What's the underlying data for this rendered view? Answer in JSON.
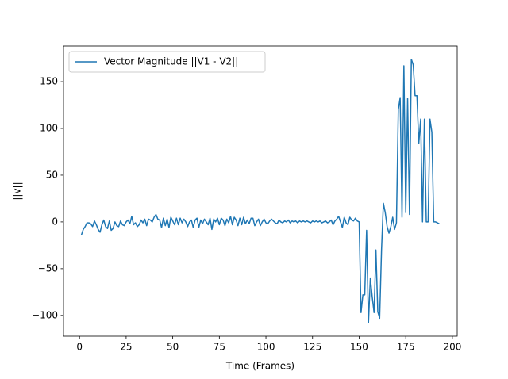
{
  "chart_data": {
    "type": "line",
    "xlabel": "Time (Frames)",
    "ylabel": "||v||",
    "x": [
      1,
      2,
      3,
      4,
      5,
      6,
      7,
      8,
      9,
      10,
      11,
      12,
      13,
      14,
      15,
      16,
      17,
      18,
      19,
      20,
      21,
      22,
      23,
      24,
      25,
      26,
      27,
      28,
      29,
      30,
      31,
      32,
      33,
      34,
      35,
      36,
      37,
      38,
      39,
      40,
      41,
      42,
      43,
      44,
      45,
      46,
      47,
      48,
      49,
      50,
      51,
      52,
      53,
      54,
      55,
      56,
      57,
      58,
      59,
      60,
      61,
      62,
      63,
      64,
      65,
      66,
      67,
      68,
      69,
      70,
      71,
      72,
      73,
      74,
      75,
      76,
      77,
      78,
      79,
      80,
      81,
      82,
      83,
      84,
      85,
      86,
      87,
      88,
      89,
      90,
      91,
      92,
      93,
      94,
      95,
      96,
      97,
      98,
      99,
      100,
      101,
      102,
      103,
      104,
      105,
      106,
      107,
      108,
      109,
      110,
      111,
      112,
      113,
      114,
      115,
      116,
      117,
      118,
      119,
      120,
      121,
      122,
      123,
      124,
      125,
      126,
      127,
      128,
      129,
      130,
      131,
      132,
      133,
      134,
      135,
      136,
      137,
      138,
      139,
      140,
      141,
      142,
      143,
      144,
      145,
      146,
      147,
      148,
      149,
      150,
      151,
      152,
      153,
      154,
      155,
      156,
      157,
      158,
      159,
      160,
      161,
      162,
      163,
      164,
      165,
      166,
      167,
      168,
      169,
      170,
      171,
      172,
      173,
      174,
      175,
      176,
      177,
      178,
      179,
      180,
      181,
      182,
      183,
      184,
      185,
      186,
      187,
      188,
      189,
      190,
      191,
      192,
      193
    ],
    "series": [
      {
        "name": "Vector Magnitude ||V1 - V2||",
        "color": "#1f77b4",
        "values": [
          -14,
          -8,
          -5,
          -1,
          -1,
          -2,
          -5,
          1,
          -3,
          -8,
          -11,
          -3,
          2,
          -5,
          -7,
          1,
          -9,
          -7,
          0,
          -4,
          -5,
          1,
          -3,
          -4,
          0,
          2,
          -2,
          6,
          -3,
          -1,
          -5,
          -3,
          2,
          -1,
          3,
          -4,
          3,
          2,
          0,
          5,
          8,
          3,
          2,
          -6,
          4,
          -4,
          3,
          -6,
          5,
          1,
          -3,
          4,
          -3,
          4,
          -1,
          3,
          0,
          -5,
          0,
          2,
          -6,
          2,
          4,
          -6,
          2,
          -2,
          3,
          0,
          -3,
          4,
          -8,
          3,
          0,
          4,
          -3,
          4,
          2,
          -4,
          3,
          -1,
          6,
          -3,
          5,
          2,
          -4,
          4,
          -3,
          5,
          -2,
          2,
          -2,
          4,
          4,
          -4,
          0,
          3,
          -4,
          0,
          3,
          -1,
          -2,
          1,
          3,
          1,
          -1,
          -2,
          2,
          0,
          -1,
          1,
          0,
          2,
          -1,
          1,
          0,
          1,
          -1,
          1,
          0,
          1,
          0,
          1,
          0,
          -1,
          1,
          0,
          1,
          0,
          1,
          -1,
          0,
          1,
          -1,
          0,
          2,
          -3,
          1,
          3,
          6,
          0,
          -6,
          5,
          -1,
          -3,
          5,
          2,
          1,
          4,
          1,
          0,
          -97,
          -78,
          -78,
          -9,
          -108,
          -60,
          -80,
          -97,
          -30,
          -96,
          -103,
          -30,
          20,
          10,
          -5,
          -12,
          -5,
          5,
          -8,
          -1,
          120,
          133,
          5,
          167,
          10,
          132,
          8,
          174,
          168,
          135,
          135,
          84,
          110,
          0,
          110,
          0,
          0,
          110,
          96,
          0,
          0,
          -1,
          -2
        ]
      }
    ],
    "xlim": [
      -8.6,
      202.6
    ],
    "ylim": [
      -122.2,
      188.2
    ],
    "xticks": [
      0,
      25,
      50,
      75,
      100,
      125,
      150,
      175,
      200
    ],
    "yticks": [
      {
        "value": -100,
        "label": "−100"
      },
      {
        "value": -50,
        "label": "−50"
      },
      0,
      50,
      100,
      150
    ],
    "legend": "upper left"
  }
}
